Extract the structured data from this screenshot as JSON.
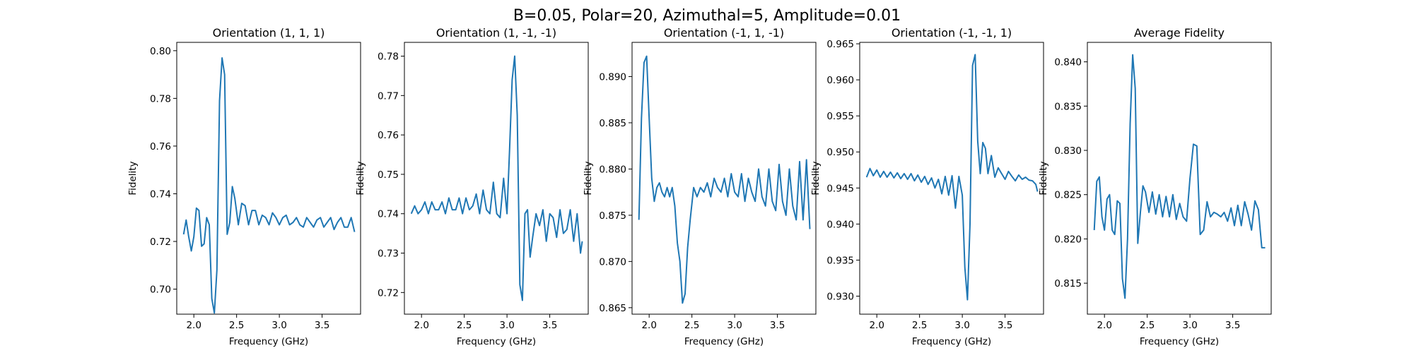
{
  "figure": {
    "title": "B=0.05, Polar=20, Azimuthal=5, Amplitude=0.01",
    "line_color": "#1f77b4"
  },
  "chart_data": [
    {
      "type": "line",
      "title": "Orientation (1, 1, 1)",
      "xlabel": "Frequency (GHz)",
      "ylabel": "Fidelity",
      "xlim": [
        1.8,
        3.95
      ],
      "ylim": [
        0.6895,
        0.8035
      ],
      "xticks": [
        2.0,
        2.5,
        3.0,
        3.5
      ],
      "yticks": [
        0.7,
        0.72,
        0.74,
        0.76,
        0.78,
        0.8
      ],
      "x": [
        1.88,
        1.91,
        1.94,
        1.97,
        2.0,
        2.03,
        2.06,
        2.09,
        2.12,
        2.15,
        2.18,
        2.21,
        2.24,
        2.27,
        2.3,
        2.33,
        2.36,
        2.39,
        2.42,
        2.45,
        2.48,
        2.52,
        2.56,
        2.6,
        2.64,
        2.68,
        2.72,
        2.76,
        2.8,
        2.84,
        2.88,
        2.92,
        2.96,
        3.0,
        3.04,
        3.08,
        3.12,
        3.16,
        3.2,
        3.24,
        3.28,
        3.32,
        3.36,
        3.4,
        3.44,
        3.48,
        3.52,
        3.56,
        3.6,
        3.64,
        3.68,
        3.72,
        3.76,
        3.8,
        3.84,
        3.88
      ],
      "y": [
        0.723,
        0.729,
        0.722,
        0.716,
        0.722,
        0.734,
        0.733,
        0.718,
        0.719,
        0.73,
        0.727,
        0.696,
        0.69,
        0.708,
        0.779,
        0.797,
        0.79,
        0.723,
        0.728,
        0.743,
        0.738,
        0.727,
        0.736,
        0.735,
        0.727,
        0.733,
        0.733,
        0.727,
        0.731,
        0.73,
        0.727,
        0.732,
        0.73,
        0.727,
        0.73,
        0.731,
        0.727,
        0.728,
        0.73,
        0.727,
        0.726,
        0.73,
        0.728,
        0.726,
        0.729,
        0.73,
        0.726,
        0.728,
        0.73,
        0.725,
        0.728,
        0.73,
        0.726,
        0.726,
        0.73,
        0.724
      ]
    },
    {
      "type": "line",
      "title": "Orientation (1, -1, -1)",
      "xlabel": "Frequency (GHz)",
      "ylabel": "Fidelity",
      "xlim": [
        1.8,
        3.95
      ],
      "ylim": [
        0.7145,
        0.7835
      ],
      "xticks": [
        2.0,
        2.5,
        3.0,
        3.5
      ],
      "yticks": [
        0.72,
        0.73,
        0.74,
        0.75,
        0.76,
        0.77,
        0.78
      ],
      "x": [
        1.88,
        1.92,
        1.96,
        2.0,
        2.04,
        2.08,
        2.12,
        2.16,
        2.2,
        2.24,
        2.28,
        2.32,
        2.36,
        2.4,
        2.44,
        2.48,
        2.52,
        2.56,
        2.6,
        2.64,
        2.68,
        2.72,
        2.76,
        2.8,
        2.84,
        2.88,
        2.92,
        2.96,
        3.0,
        3.03,
        3.06,
        3.09,
        3.12,
        3.15,
        3.18,
        3.21,
        3.24,
        3.27,
        3.3,
        3.34,
        3.38,
        3.42,
        3.46,
        3.5,
        3.54,
        3.58,
        3.62,
        3.66,
        3.7,
        3.74,
        3.78,
        3.82,
        3.86,
        3.88
      ],
      "y": [
        0.74,
        0.742,
        0.74,
        0.741,
        0.743,
        0.74,
        0.743,
        0.741,
        0.741,
        0.743,
        0.74,
        0.744,
        0.741,
        0.741,
        0.744,
        0.74,
        0.744,
        0.741,
        0.742,
        0.745,
        0.74,
        0.746,
        0.741,
        0.74,
        0.748,
        0.74,
        0.739,
        0.749,
        0.74,
        0.756,
        0.774,
        0.78,
        0.765,
        0.722,
        0.718,
        0.74,
        0.741,
        0.729,
        0.734,
        0.74,
        0.737,
        0.741,
        0.733,
        0.74,
        0.739,
        0.734,
        0.741,
        0.735,
        0.736,
        0.741,
        0.733,
        0.74,
        0.73,
        0.733
      ]
    },
    {
      "type": "line",
      "title": "Orientation (-1, 1, -1)",
      "xlabel": "Frequency (GHz)",
      "ylabel": "Fidelity",
      "xlim": [
        1.8,
        3.95
      ],
      "ylim": [
        0.8643,
        0.8937
      ],
      "xticks": [
        2.0,
        2.5,
        3.0,
        3.5
      ],
      "yticks": [
        0.865,
        0.87,
        0.875,
        0.88,
        0.885,
        0.89
      ],
      "x": [
        1.88,
        1.91,
        1.94,
        1.97,
        2.0,
        2.03,
        2.06,
        2.09,
        2.12,
        2.15,
        2.18,
        2.21,
        2.24,
        2.27,
        2.3,
        2.33,
        2.36,
        2.39,
        2.42,
        2.45,
        2.48,
        2.52,
        2.56,
        2.6,
        2.64,
        2.68,
        2.72,
        2.76,
        2.8,
        2.84,
        2.88,
        2.92,
        2.96,
        3.0,
        3.04,
        3.08,
        3.12,
        3.16,
        3.2,
        3.24,
        3.28,
        3.32,
        3.36,
        3.4,
        3.44,
        3.48,
        3.52,
        3.56,
        3.6,
        3.64,
        3.68,
        3.72,
        3.76,
        3.8,
        3.84,
        3.88
      ],
      "y": [
        0.8745,
        0.8855,
        0.8915,
        0.8922,
        0.8855,
        0.879,
        0.8765,
        0.878,
        0.8785,
        0.8775,
        0.877,
        0.878,
        0.877,
        0.878,
        0.876,
        0.872,
        0.87,
        0.8655,
        0.8665,
        0.8715,
        0.8745,
        0.878,
        0.877,
        0.878,
        0.8775,
        0.8785,
        0.877,
        0.879,
        0.878,
        0.8775,
        0.879,
        0.877,
        0.8795,
        0.8775,
        0.877,
        0.8795,
        0.8765,
        0.879,
        0.8775,
        0.8765,
        0.88,
        0.877,
        0.876,
        0.88,
        0.8765,
        0.8755,
        0.8805,
        0.8765,
        0.875,
        0.88,
        0.876,
        0.8745,
        0.8808,
        0.8745,
        0.881,
        0.8735
      ]
    },
    {
      "type": "line",
      "title": "Orientation (-1, -1, 1)",
      "xlabel": "Frequency (GHz)",
      "ylabel": "Fidelity",
      "xlim": [
        1.8,
        3.95
      ],
      "ylim": [
        0.9275,
        0.9652
      ],
      "xticks": [
        2.0,
        2.5,
        3.0,
        3.5
      ],
      "yticks": [
        0.93,
        0.935,
        0.94,
        0.945,
        0.95,
        0.955,
        0.96,
        0.965
      ],
      "x": [
        1.88,
        1.92,
        1.96,
        2.0,
        2.04,
        2.08,
        2.12,
        2.16,
        2.2,
        2.24,
        2.28,
        2.32,
        2.36,
        2.4,
        2.44,
        2.48,
        2.52,
        2.56,
        2.6,
        2.64,
        2.68,
        2.72,
        2.76,
        2.8,
        2.84,
        2.88,
        2.92,
        2.96,
        3.0,
        3.03,
        3.06,
        3.09,
        3.12,
        3.15,
        3.18,
        3.21,
        3.24,
        3.27,
        3.3,
        3.34,
        3.38,
        3.42,
        3.46,
        3.5,
        3.54,
        3.58,
        3.62,
        3.66,
        3.7,
        3.74,
        3.78,
        3.82,
        3.86,
        3.88
      ],
      "y": [
        0.9465,
        0.9477,
        0.9467,
        0.9475,
        0.9465,
        0.9473,
        0.9465,
        0.9472,
        0.9464,
        0.9471,
        0.9463,
        0.947,
        0.9462,
        0.947,
        0.946,
        0.9468,
        0.9458,
        0.9466,
        0.9455,
        0.9464,
        0.945,
        0.9462,
        0.9442,
        0.9466,
        0.944,
        0.9467,
        0.9422,
        0.9466,
        0.944,
        0.934,
        0.9295,
        0.94,
        0.962,
        0.9635,
        0.9515,
        0.947,
        0.9513,
        0.9505,
        0.947,
        0.9495,
        0.9465,
        0.9478,
        0.947,
        0.9462,
        0.9473,
        0.9466,
        0.946,
        0.9468,
        0.9462,
        0.9465,
        0.9461,
        0.946,
        0.9455,
        0.9445
      ]
    },
    {
      "type": "line",
      "title": "Average Fidelity",
      "xlabel": "Frequency (GHz)",
      "ylabel": "Fidelity",
      "xlim": [
        1.8,
        3.95
      ],
      "ylim": [
        0.8115,
        0.8422
      ],
      "xticks": [
        2.0,
        2.5,
        3.0,
        3.5
      ],
      "yticks": [
        0.815,
        0.82,
        0.825,
        0.83,
        0.835,
        0.84
      ],
      "x": [
        1.88,
        1.91,
        1.94,
        1.97,
        2.0,
        2.03,
        2.06,
        2.09,
        2.12,
        2.15,
        2.18,
        2.21,
        2.24,
        2.27,
        2.3,
        2.33,
        2.36,
        2.39,
        2.42,
        2.45,
        2.48,
        2.52,
        2.56,
        2.6,
        2.64,
        2.68,
        2.72,
        2.76,
        2.8,
        2.84,
        2.88,
        2.92,
        2.96,
        3.0,
        3.04,
        3.08,
        3.12,
        3.16,
        3.2,
        3.24,
        3.28,
        3.32,
        3.36,
        3.4,
        3.44,
        3.48,
        3.52,
        3.56,
        3.6,
        3.64,
        3.68,
        3.72,
        3.76,
        3.8,
        3.84,
        3.88
      ],
      "y": [
        0.821,
        0.8265,
        0.827,
        0.8225,
        0.821,
        0.8245,
        0.825,
        0.821,
        0.8205,
        0.8243,
        0.824,
        0.8155,
        0.8133,
        0.82,
        0.833,
        0.8408,
        0.837,
        0.8195,
        0.823,
        0.826,
        0.8253,
        0.823,
        0.8253,
        0.8228,
        0.825,
        0.8225,
        0.8248,
        0.8225,
        0.825,
        0.8222,
        0.824,
        0.8225,
        0.822,
        0.8268,
        0.8307,
        0.8305,
        0.8205,
        0.821,
        0.8242,
        0.8225,
        0.823,
        0.8228,
        0.8225,
        0.823,
        0.822,
        0.8235,
        0.8215,
        0.8238,
        0.8215,
        0.8242,
        0.8228,
        0.821,
        0.8243,
        0.8233,
        0.819,
        0.819
      ]
    }
  ]
}
